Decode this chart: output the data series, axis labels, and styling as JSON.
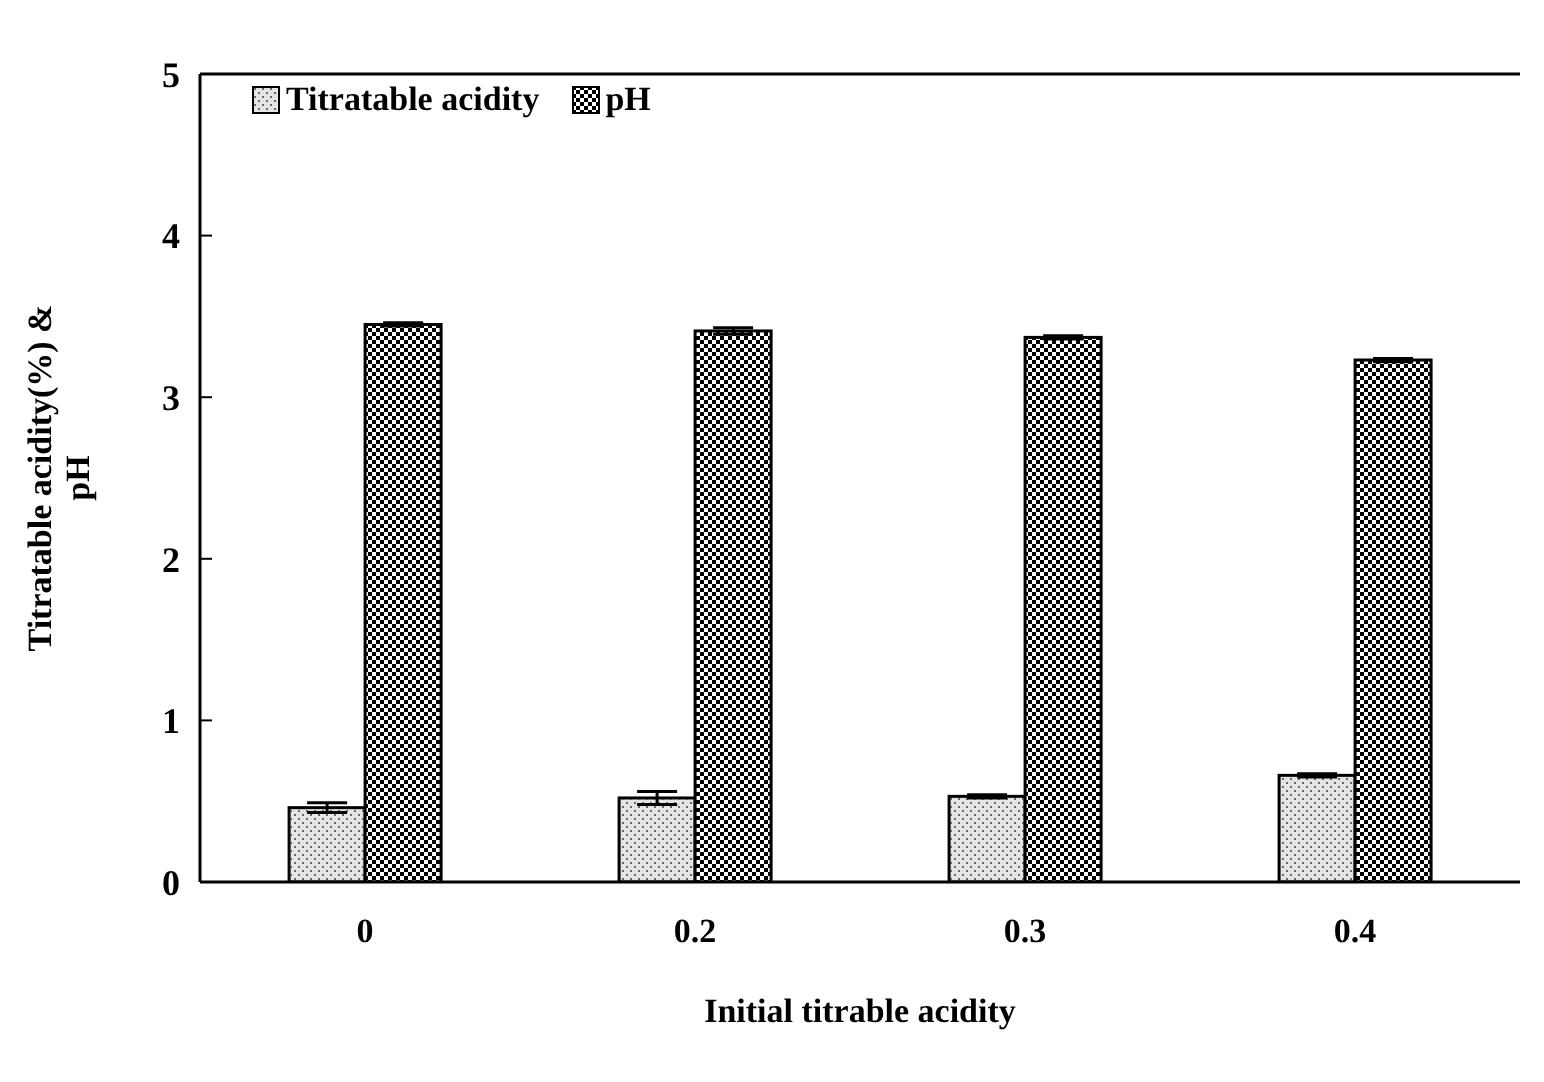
{
  "chart_data": {
    "type": "bar",
    "xlabel": "Initial titrable acidity",
    "ylabel": "Titratable acidity(%) &\npH",
    "categories": [
      "0",
      "0.2",
      "0.3",
      "0.4"
    ],
    "series": [
      {
        "name": "Titratable acidity",
        "color": "#e4e4e4",
        "values": [
          0.46,
          0.52,
          0.53,
          0.66
        ],
        "errors": [
          0.03,
          0.04,
          0.01,
          0.01
        ]
      },
      {
        "name": "pH",
        "color": "#000000",
        "values": [
          3.45,
          3.41,
          3.37,
          3.23
        ],
        "errors": [
          0.01,
          0.02,
          0.01,
          0.01
        ]
      }
    ],
    "ylim": [
      0,
      5
    ],
    "yticks": [
      0,
      1,
      2,
      3,
      4,
      5
    ],
    "grid": false,
    "legend": "top left"
  }
}
